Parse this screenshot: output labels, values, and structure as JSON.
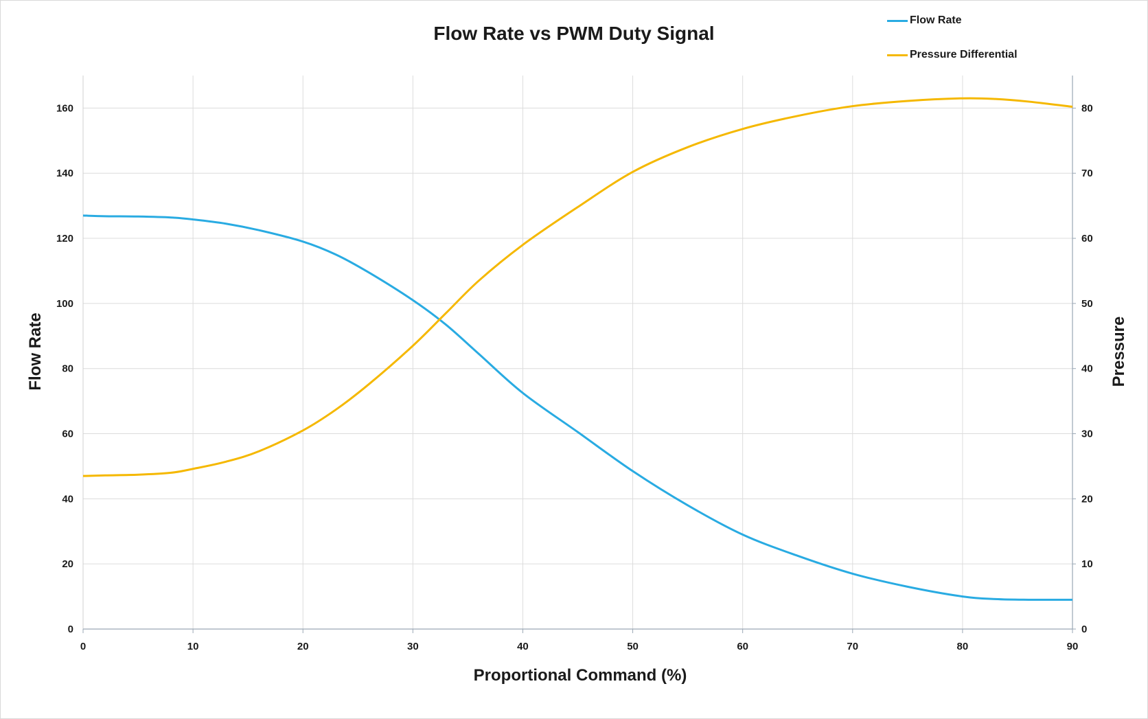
{
  "chart_data": {
    "type": "line",
    "title": "Flow Rate vs PWM Duty Signal",
    "xlabel": "Proportional Command (%)",
    "ylabel": "Flow Rate",
    "y2label": "Pressure",
    "xlim": [
      0,
      90
    ],
    "ylim": [
      0,
      170
    ],
    "y2lim": [
      0,
      85
    ],
    "xticks": [
      0,
      10,
      20,
      30,
      40,
      50,
      60,
      70,
      80,
      90
    ],
    "yticks": [
      0,
      20,
      40,
      60,
      80,
      100,
      120,
      140,
      160
    ],
    "y2ticks": [
      0,
      10,
      20,
      30,
      40,
      50,
      60,
      70,
      80
    ],
    "grid": true,
    "legend_position": "top-right",
    "series": [
      {
        "name": "Flow Rate",
        "axis": "left",
        "color": "#29abe2",
        "x": [
          0,
          2,
          5,
          8,
          10,
          13,
          16,
          20,
          23,
          26,
          30,
          33,
          36,
          40,
          45,
          50,
          55,
          60,
          65,
          70,
          75,
          80,
          83,
          86,
          90
        ],
        "values": [
          127,
          126.8,
          126.7,
          126.4,
          125.8,
          124.5,
          122.5,
          119,
          115,
          109.5,
          101,
          93.5,
          84.5,
          72.5,
          60.5,
          48.5,
          38,
          29,
          22.5,
          17,
          13,
          10,
          9.2,
          9,
          9
        ]
      },
      {
        "name": "Pressure Differential",
        "axis": "right",
        "color": "#f5b800",
        "x": [
          0,
          2,
          5,
          8,
          10,
          13,
          16,
          20,
          23,
          26,
          30,
          33,
          36,
          40,
          45,
          50,
          55,
          60,
          65,
          70,
          75,
          80,
          83,
          86,
          90
        ],
        "values": [
          23.5,
          23.6,
          23.7,
          24,
          24.6,
          25.7,
          27.3,
          30.5,
          33.7,
          37.6,
          43.5,
          48.5,
          53.5,
          59,
          64.8,
          70.2,
          74,
          76.8,
          78.8,
          80.3,
          81.1,
          81.5,
          81.4,
          81,
          80.2
        ]
      }
    ]
  }
}
